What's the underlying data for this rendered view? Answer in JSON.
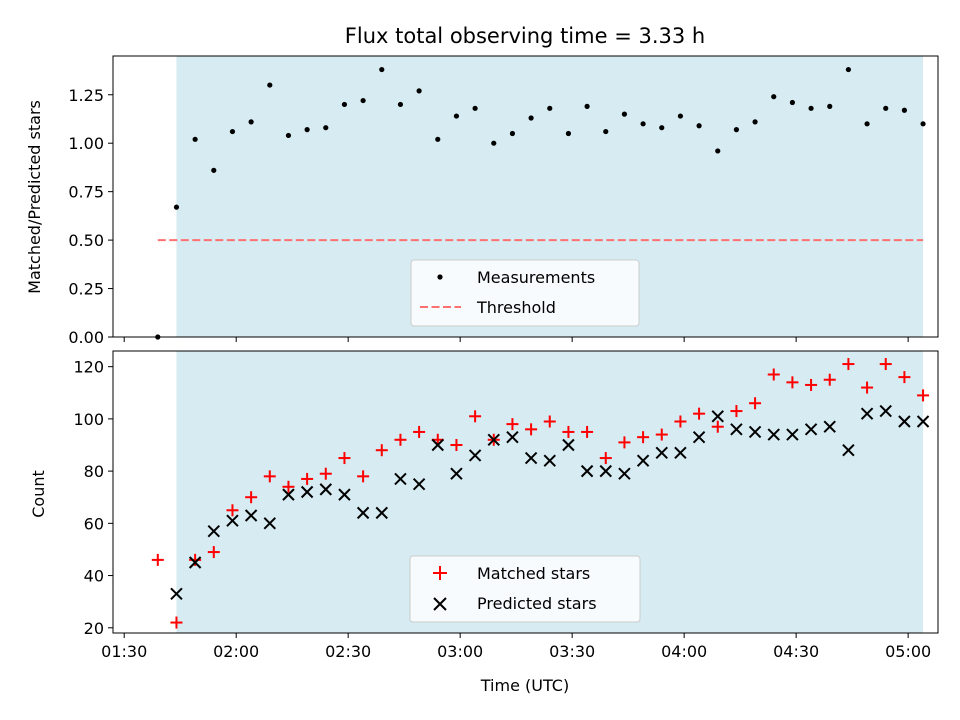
{
  "chart_data": [
    {
      "type": "scatter",
      "title": "Flux total observing time = 3.33 h",
      "xlabel": "",
      "ylabel": "Matched/Predicted stars",
      "xlim": [
        "01:27",
        "05:08"
      ],
      "ylim": [
        0,
        1.45
      ],
      "yticks": [
        0.0,
        0.25,
        0.5,
        0.75,
        1.0,
        1.25
      ],
      "ytick_labels": [
        "0.00",
        "0.25",
        "0.50",
        "0.75",
        "1.00",
        "1.25"
      ],
      "shaded_span": [
        "01:44",
        "05:04"
      ],
      "shade_color": "#add8e6",
      "series": [
        {
          "name": "Measurements",
          "marker": "dot",
          "color": "#000000",
          "x": [
            "01:39",
            "01:44",
            "01:49",
            "01:54",
            "01:59",
            "02:04",
            "02:09",
            "02:14",
            "02:19",
            "02:24",
            "02:29",
            "02:34",
            "02:39",
            "02:44",
            "02:49",
            "02:54",
            "02:59",
            "03:04",
            "03:09",
            "03:14",
            "03:19",
            "03:24",
            "03:29",
            "03:34",
            "03:39",
            "03:44",
            "03:49",
            "03:54",
            "03:59",
            "04:04",
            "04:09",
            "04:14",
            "04:19",
            "04:24",
            "04:29",
            "04:34",
            "04:39",
            "04:44",
            "04:49",
            "04:54",
            "04:59",
            "05:04"
          ],
          "y": [
            0.0,
            0.67,
            1.02,
            0.86,
            1.06,
            1.11,
            1.3,
            1.04,
            1.07,
            1.08,
            1.2,
            1.22,
            1.38,
            1.2,
            1.27,
            1.02,
            1.14,
            1.18,
            1.0,
            1.05,
            1.13,
            1.18,
            1.05,
            1.19,
            1.06,
            1.15,
            1.1,
            1.08,
            1.14,
            1.09,
            0.96,
            1.07,
            1.11,
            1.24,
            1.21,
            1.18,
            1.19,
            1.38,
            1.1,
            1.18,
            1.17,
            1.1
          ]
        },
        {
          "name": "Threshold",
          "style": "dashed",
          "color": "#ff7070",
          "x": [
            "01:39",
            "05:04"
          ],
          "y": [
            0.5,
            0.5
          ]
        }
      ],
      "legend": [
        "Measurements",
        "Threshold"
      ],
      "legend_position": "lower-center",
      "grid": false
    },
    {
      "type": "scatter",
      "title": "",
      "xlabel": "Time (UTC)",
      "ylabel": "Count",
      "xlim": [
        "01:27",
        "05:08"
      ],
      "ylim": [
        18,
        126
      ],
      "yticks": [
        20,
        40,
        60,
        80,
        100,
        120
      ],
      "ytick_labels": [
        "20",
        "40",
        "60",
        "80",
        "100",
        "120"
      ],
      "xticks": [
        "01:30",
        "02:00",
        "02:30",
        "03:00",
        "03:30",
        "04:00",
        "04:30",
        "05:00"
      ],
      "xtick_labels": [
        "01:30",
        "02:00",
        "02:30",
        "03:00",
        "03:30",
        "04:00",
        "04:30",
        "05:00"
      ],
      "shaded_span": [
        "01:44",
        "05:04"
      ],
      "shade_color": "#add8e6",
      "series": [
        {
          "name": "Matched stars",
          "marker": "plus",
          "color": "#ff0000",
          "x": [
            "01:39",
            "01:44",
            "01:49",
            "01:54",
            "01:59",
            "02:04",
            "02:09",
            "02:14",
            "02:19",
            "02:24",
            "02:29",
            "02:34",
            "02:39",
            "02:44",
            "02:49",
            "02:54",
            "02:59",
            "03:04",
            "03:09",
            "03:14",
            "03:19",
            "03:24",
            "03:29",
            "03:34",
            "03:39",
            "03:44",
            "03:49",
            "03:54",
            "03:59",
            "04:04",
            "04:09",
            "04:14",
            "04:19",
            "04:24",
            "04:29",
            "04:34",
            "04:39",
            "04:44",
            "04:49",
            "04:54",
            "04:59",
            "05:04"
          ],
          "y": [
            46,
            22,
            46,
            49,
            65,
            70,
            78,
            74,
            77,
            79,
            85,
            78,
            88,
            92,
            95,
            92,
            90,
            101,
            92,
            98,
            96,
            99,
            95,
            95,
            85,
            91,
            93,
            94,
            99,
            102,
            97,
            103,
            106,
            117,
            114,
            113,
            115,
            121,
            112,
            121,
            116,
            109
          ]
        },
        {
          "name": "Predicted stars",
          "marker": "x",
          "color": "#000000",
          "x": [
            "01:44",
            "01:49",
            "01:54",
            "01:59",
            "02:04",
            "02:09",
            "02:14",
            "02:19",
            "02:24",
            "02:29",
            "02:34",
            "02:39",
            "02:44",
            "02:49",
            "02:54",
            "02:59",
            "03:04",
            "03:09",
            "03:14",
            "03:19",
            "03:24",
            "03:29",
            "03:34",
            "03:39",
            "03:44",
            "03:49",
            "03:54",
            "03:59",
            "04:04",
            "04:09",
            "04:14",
            "04:19",
            "04:24",
            "04:29",
            "04:34",
            "04:39",
            "04:44",
            "04:49",
            "04:54",
            "04:59",
            "05:04"
          ],
          "y": [
            33,
            45,
            57,
            61,
            63,
            60,
            71,
            72,
            73,
            71,
            64,
            64,
            77,
            75,
            90,
            79,
            86,
            92,
            93,
            85,
            84,
            90,
            80,
            80,
            79,
            84,
            87,
            87,
            93,
            101,
            96,
            95,
            94,
            94,
            96,
            97,
            88,
            102,
            103,
            99,
            99
          ]
        }
      ],
      "legend": [
        "Matched stars",
        "Predicted stars"
      ],
      "legend_position": "lower-center",
      "grid": false
    }
  ]
}
